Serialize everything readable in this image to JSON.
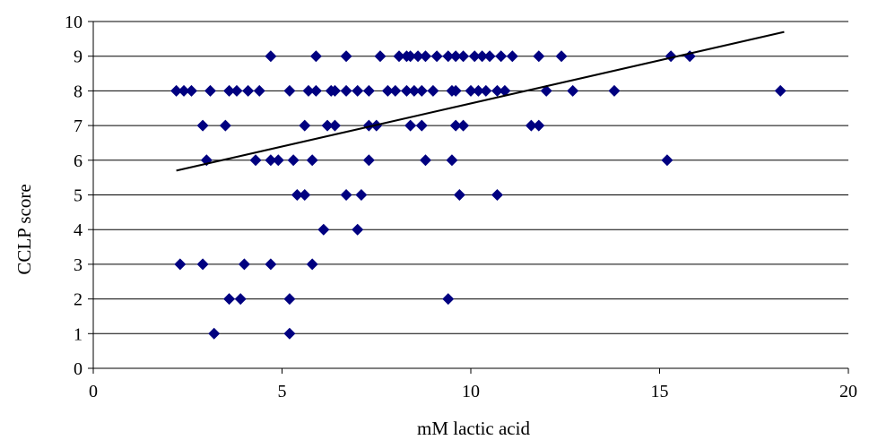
{
  "chart_data": {
    "type": "scatter",
    "title": "",
    "xlabel": "mM  lactic acid",
    "ylabel": "CCLP score",
    "xlim": [
      0,
      20
    ],
    "ylim": [
      0,
      10
    ],
    "x_ticks": [
      "0",
      "5",
      "10",
      "15",
      "20"
    ],
    "y_ticks": [
      "0",
      "1",
      "2",
      "3",
      "4",
      "5",
      "6",
      "7",
      "8",
      "9",
      "10"
    ],
    "grid": "horizontal",
    "legend": "none",
    "marker": "diamond",
    "marker_color": "#000080",
    "trendline": {
      "type": "linear",
      "x": [
        2.2,
        18.3
      ],
      "y": [
        5.7,
        9.7
      ],
      "color": "#000000"
    },
    "series": [
      {
        "points": [
          [
            2.2,
            8
          ],
          [
            2.4,
            8
          ],
          [
            2.6,
            8
          ],
          [
            3.1,
            8
          ],
          [
            3.6,
            8
          ],
          [
            3.8,
            8
          ],
          [
            4.1,
            8
          ],
          [
            4.4,
            8
          ],
          [
            5.2,
            8
          ],
          [
            5.7,
            8
          ],
          [
            5.9,
            8
          ],
          [
            6.3,
            8
          ],
          [
            6.4,
            8
          ],
          [
            6.7,
            8
          ],
          [
            7.0,
            8
          ],
          [
            7.3,
            8
          ],
          [
            7.8,
            8
          ],
          [
            8.0,
            8
          ],
          [
            8.3,
            8
          ],
          [
            8.5,
            8
          ],
          [
            8.7,
            8
          ],
          [
            9.0,
            8
          ],
          [
            9.5,
            8
          ],
          [
            9.6,
            8
          ],
          [
            10.0,
            8
          ],
          [
            10.2,
            8
          ],
          [
            10.4,
            8
          ],
          [
            10.7,
            8
          ],
          [
            10.9,
            8
          ],
          [
            12.0,
            8
          ],
          [
            12.7,
            8
          ],
          [
            13.8,
            8
          ],
          [
            18.2,
            8
          ],
          [
            4.7,
            9
          ],
          [
            5.9,
            9
          ],
          [
            6.7,
            9
          ],
          [
            7.6,
            9
          ],
          [
            8.1,
            9
          ],
          [
            8.3,
            9
          ],
          [
            8.4,
            9
          ],
          [
            8.6,
            9
          ],
          [
            8.8,
            9
          ],
          [
            9.1,
            9
          ],
          [
            9.4,
            9
          ],
          [
            9.6,
            9
          ],
          [
            9.8,
            9
          ],
          [
            10.1,
            9
          ],
          [
            10.3,
            9
          ],
          [
            10.5,
            9
          ],
          [
            10.8,
            9
          ],
          [
            11.1,
            9
          ],
          [
            11.8,
            9
          ],
          [
            12.4,
            9
          ],
          [
            15.3,
            9
          ],
          [
            15.8,
            9
          ],
          [
            2.9,
            7
          ],
          [
            3.5,
            7
          ],
          [
            5.6,
            7
          ],
          [
            6.2,
            7
          ],
          [
            6.4,
            7
          ],
          [
            7.3,
            7
          ],
          [
            7.5,
            7
          ],
          [
            8.4,
            7
          ],
          [
            8.7,
            7
          ],
          [
            9.6,
            7
          ],
          [
            9.8,
            7
          ],
          [
            11.6,
            7
          ],
          [
            11.8,
            7
          ],
          [
            3.0,
            6
          ],
          [
            4.3,
            6
          ],
          [
            4.7,
            6
          ],
          [
            4.9,
            6
          ],
          [
            5.3,
            6
          ],
          [
            5.8,
            6
          ],
          [
            7.3,
            6
          ],
          [
            8.8,
            6
          ],
          [
            9.5,
            6
          ],
          [
            15.2,
            6
          ],
          [
            5.4,
            5
          ],
          [
            5.6,
            5
          ],
          [
            6.7,
            5
          ],
          [
            7.1,
            5
          ],
          [
            9.7,
            5
          ],
          [
            10.7,
            5
          ],
          [
            6.1,
            4
          ],
          [
            7.0,
            4
          ],
          [
            2.3,
            3
          ],
          [
            2.9,
            3
          ],
          [
            4.0,
            3
          ],
          [
            4.7,
            3
          ],
          [
            5.8,
            3
          ],
          [
            3.6,
            2
          ],
          [
            3.9,
            2
          ],
          [
            5.2,
            2
          ],
          [
            9.4,
            2
          ],
          [
            3.2,
            1
          ],
          [
            5.2,
            1
          ]
        ]
      }
    ]
  }
}
